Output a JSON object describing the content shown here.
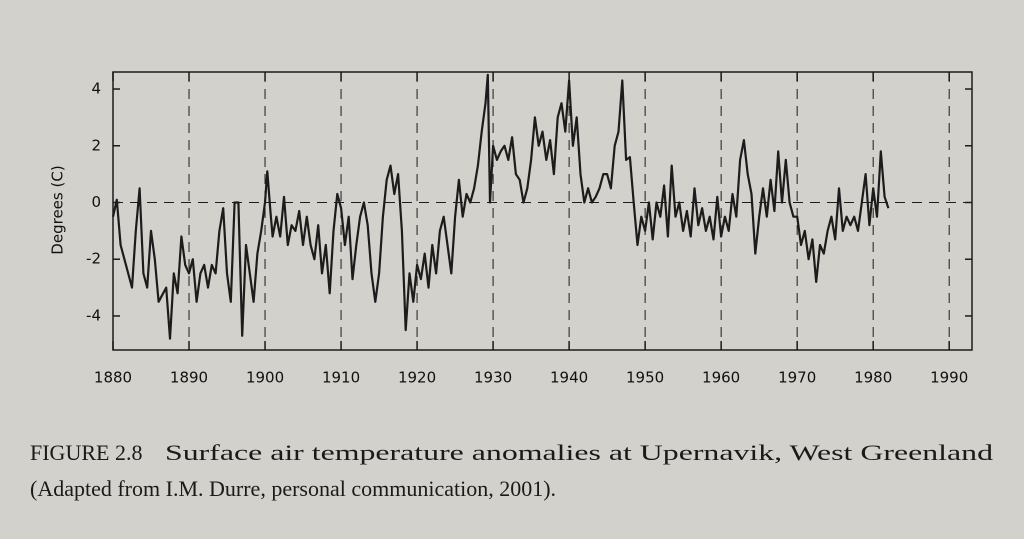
{
  "chart_data": {
    "type": "line",
    "ylabel": "Degrees (C)",
    "figure_label": "FIGURE 2.8",
    "caption_lines": [
      "Surface air temperature anomalies at Upernavik, West Greenland",
      "(Adapted from I.M. Durre, personal communication, 2001)."
    ],
    "xlim": [
      1880,
      1993
    ],
    "ylim": [
      -5.2,
      4.6
    ],
    "xticks": [
      1880,
      1890,
      1900,
      1910,
      1920,
      1930,
      1940,
      1950,
      1960,
      1970,
      1980,
      1990
    ],
    "yticks": [
      -4,
      -2,
      0,
      2,
      4
    ],
    "grid": true,
    "zero_line": true,
    "color": "#1c1c1c",
    "x": [
      1880,
      1880.5,
      1881,
      1882,
      1882.5,
      1883,
      1883.5,
      1884,
      1884.5,
      1885,
      1885.5,
      1886,
      1887,
      1887.5,
      1888,
      1888.5,
      1889,
      1889.5,
      1890,
      1890.5,
      1891,
      1891.5,
      1892,
      1892.5,
      1893,
      1893.5,
      1894,
      1894.5,
      1895,
      1895.5,
      1896,
      1896.5,
      1897,
      1897.5,
      1898,
      1898.5,
      1899,
      1899.5,
      1900,
      1900.3,
      1900.7,
      1901,
      1901.5,
      1902,
      1902.5,
      1903,
      1903.5,
      1904,
      1904.5,
      1905,
      1905.5,
      1906,
      1906.5,
      1907,
      1907.5,
      1908,
      1908.5,
      1909,
      1909.5,
      1910,
      1910.5,
      1911,
      1911.5,
      1912,
      1912.5,
      1913,
      1913.5,
      1914,
      1914.5,
      1915,
      1915.5,
      1916,
      1916.5,
      1917,
      1917.5,
      1918,
      1918.5,
      1919,
      1919.5,
      1920,
      1920.5,
      1921,
      1921.5,
      1922,
      1922.5,
      1923,
      1923.5,
      1924,
      1924.5,
      1925,
      1925.5,
      1926,
      1926.5,
      1927,
      1927.5,
      1928,
      1928.5,
      1929,
      1929.3,
      1929.6,
      1930,
      1930.5,
      1931,
      1931.5,
      1932,
      1932.5,
      1933,
      1933.5,
      1934,
      1934.5,
      1935,
      1935.5,
      1936,
      1936.5,
      1937,
      1937.5,
      1938,
      1938.5,
      1939,
      1939.5,
      1940,
      1940.5,
      1941,
      1941.5,
      1942,
      1942.5,
      1943,
      1943.5,
      1944,
      1944.5,
      1945,
      1945.5,
      1946,
      1946.5,
      1947,
      1947.5,
      1948,
      1948.5,
      1949,
      1949.5,
      1950,
      1950.5,
      1951,
      1951.5,
      1952,
      1952.5,
      1953,
      1953.5,
      1954,
      1954.5,
      1955,
      1955.5,
      1956,
      1956.5,
      1957,
      1957.5,
      1958,
      1958.5,
      1959,
      1959.5,
      1960,
      1960.5,
      1961,
      1961.5,
      1962,
      1962.5,
      1963,
      1963.5,
      1964,
      1964.5,
      1965,
      1965.5,
      1966,
      1966.5,
      1967,
      1967.5,
      1968,
      1968.5,
      1969,
      1969.5,
      1970,
      1970.5,
      1971,
      1971.5,
      1972,
      1972.5,
      1973,
      1973.5,
      1974,
      1974.5,
      1975,
      1975.5,
      1976,
      1976.5,
      1977,
      1977.5,
      1978,
      1978.5,
      1979,
      1979.5,
      1980,
      1980.5,
      1981,
      1981.5,
      1982
    ],
    "values": [
      -0.5,
      0.1,
      -1.5,
      -2.5,
      -3,
      -1,
      0.5,
      -2.5,
      -3,
      -1,
      -2,
      -3.5,
      -3,
      -4.8,
      -2.5,
      -3.2,
      -1.2,
      -2.2,
      -2.5,
      -2,
      -3.5,
      -2.5,
      -2.2,
      -3,
      -2.2,
      -2.5,
      -1,
      -0.2,
      -2.5,
      -3.5,
      0,
      0,
      -4.7,
      -1.5,
      -2.5,
      -3.5,
      -1.8,
      -1,
      0,
      1.1,
      -0.3,
      -1.2,
      -0.5,
      -1.2,
      0.2,
      -1.5,
      -0.8,
      -1,
      -0.3,
      -1.5,
      -0.5,
      -1.5,
      -2,
      -0.8,
      -2.5,
      -1.5,
      -3.2,
      -1,
      0.3,
      -0.2,
      -1.5,
      -0.5,
      -2.7,
      -1.5,
      -0.5,
      0,
      -0.8,
      -2.5,
      -3.5,
      -2.5,
      -0.5,
      0.8,
      1.3,
      0.3,
      1,
      -1,
      -4.5,
      -2.5,
      -3.5,
      -2.2,
      -2.7,
      -1.8,
      -3,
      -1.5,
      -2.5,
      -1,
      -0.5,
      -1.5,
      -2.5,
      -0.5,
      0.8,
      -0.5,
      0.3,
      0,
      0.5,
      1.3,
      2.5,
      3.5,
      4.5,
      0,
      2,
      1.5,
      1.8,
      2,
      1.5,
      2.3,
      1,
      0.8,
      0,
      0.5,
      1.5,
      3,
      2,
      2.5,
      1.5,
      2.2,
      1,
      3,
      3.5,
      2.5,
      4.3,
      2,
      3,
      1,
      0,
      0.5,
      0,
      0.2,
      0.5,
      1,
      1,
      0.5,
      2,
      2.5,
      4.3,
      1.5,
      1.6,
      0,
      -1.5,
      -0.5,
      -1,
      0,
      -1.3,
      0,
      -0.5,
      0.6,
      -1.2,
      1.3,
      -0.5,
      0,
      -1,
      -0.3,
      -1.2,
      0.5,
      -0.8,
      -0.2,
      -1,
      -0.5,
      -1.3,
      0.2,
      -1.2,
      -0.5,
      -1,
      0.3,
      -0.5,
      1.5,
      2.2,
      1,
      0.3,
      -1.8,
      -0.5,
      0.5,
      -0.5,
      0.8,
      -0.3,
      1.8,
      0,
      1.5,
      0,
      -0.5,
      -0.5,
      -1.5,
      -1,
      -2,
      -1.3,
      -2.8,
      -1.5,
      -1.8,
      -1,
      -0.5,
      -1.3,
      0.5,
      -1,
      -0.5,
      -0.8,
      -0.5,
      -1,
      0,
      1,
      -0.8,
      0.5,
      -0.5,
      1.8,
      0.2,
      -0.2
    ]
  }
}
